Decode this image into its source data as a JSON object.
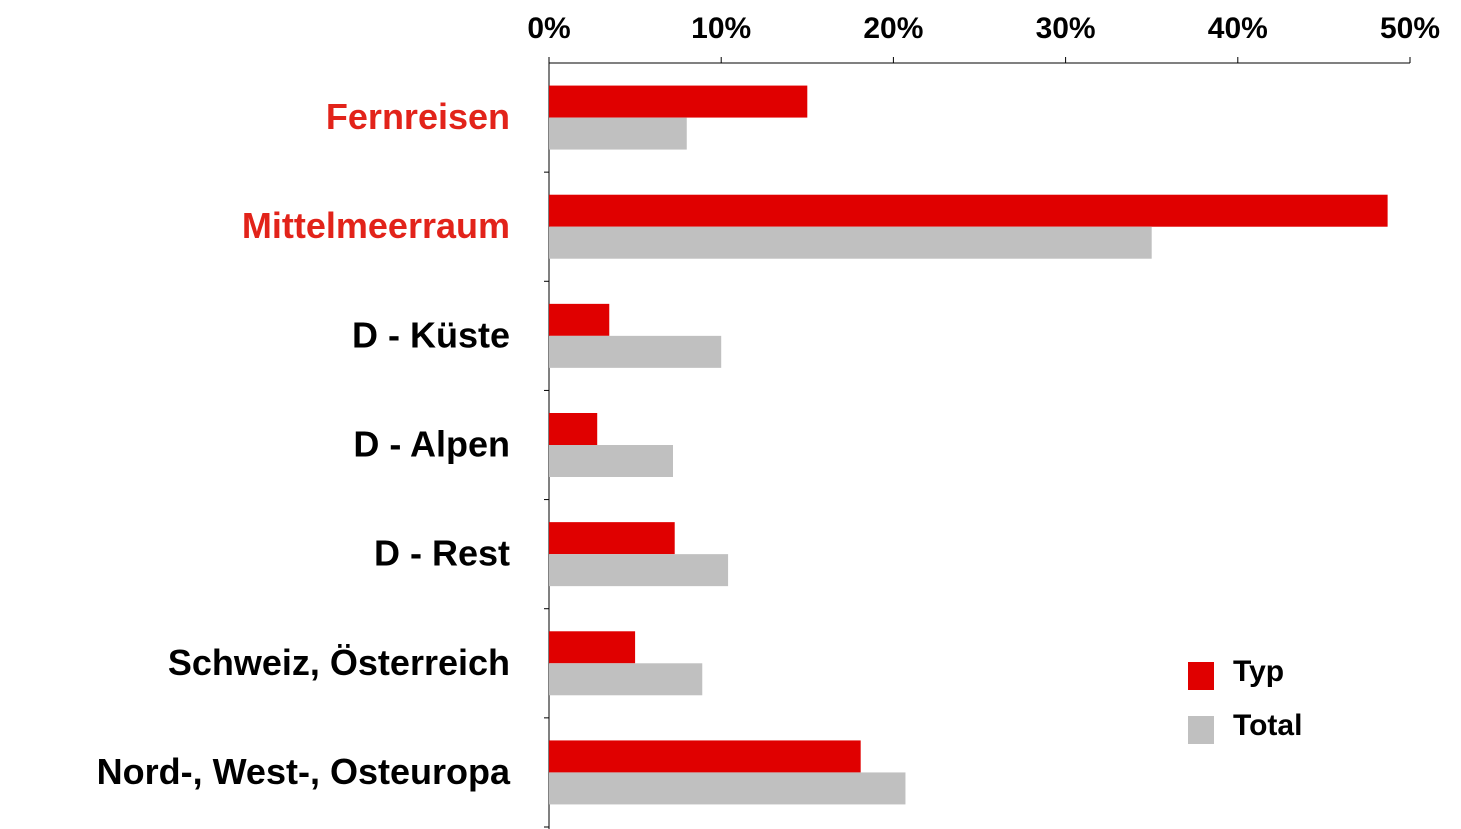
{
  "chart_data": {
    "type": "bar",
    "orientation": "horizontal",
    "categories": [
      "Fernreisen",
      "Mittelmeerraum",
      "D - Küste",
      "D - Alpen",
      "D - Rest",
      "Schweiz, Österreich",
      "Nord-, West-, Osteuropa"
    ],
    "category_label_colors": [
      "#e2231a",
      "#e2231a",
      "#000000",
      "#000000",
      "#000000",
      "#000000",
      "#000000"
    ],
    "series": [
      {
        "name": "Typ",
        "color": "#e00000",
        "values": [
          15,
          48.7,
          3.5,
          2.8,
          7.3,
          5,
          18.1
        ]
      },
      {
        "name": "Total",
        "color": "#c0c0c0",
        "values": [
          8,
          35,
          10,
          7.2,
          10.4,
          8.9,
          20.7
        ]
      }
    ],
    "xlim": [
      0,
      50
    ],
    "xticks": [
      {
        "value": 0,
        "label": "0%"
      },
      {
        "value": 10,
        "label": "10%"
      },
      {
        "value": 20,
        "label": "20%"
      },
      {
        "value": 30,
        "label": "30%"
      },
      {
        "value": 40,
        "label": "40%"
      },
      {
        "value": 50,
        "label": "50%"
      }
    ],
    "xaxis_position": "top",
    "grid": false,
    "legend": "lower right"
  }
}
